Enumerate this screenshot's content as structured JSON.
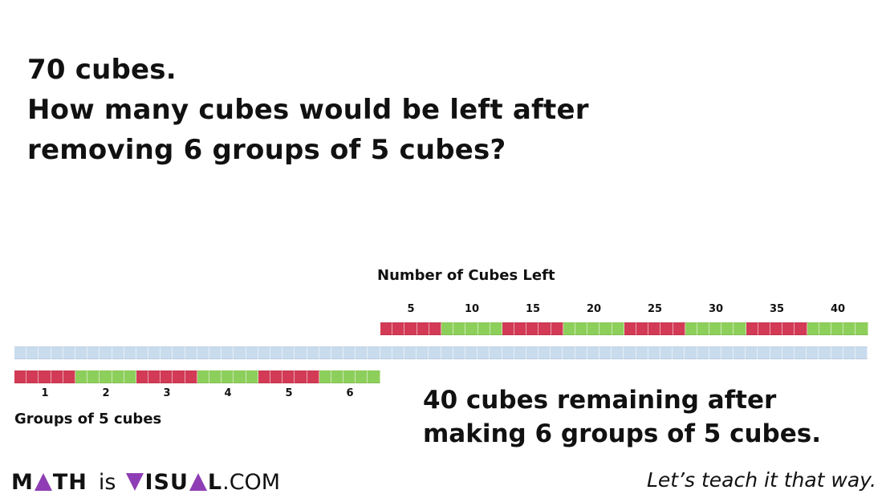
{
  "question": {
    "line1": "70 cubes.",
    "line2": "How many cubes would be left after",
    "line3": "removing 6 groups of 5 cubes?"
  },
  "cubes_left_title": "Number of Cubes Left",
  "cubes_left_ticks": [
    "5",
    "10",
    "15",
    "20",
    "25",
    "30",
    "35",
    "40"
  ],
  "groups_title": "Groups of 5 cubes",
  "group_ticks": [
    "1",
    "2",
    "3",
    "4",
    "5",
    "6"
  ],
  "answer": {
    "line1": "40 cubes remaining after",
    "line2": "making 6 groups of 5 cubes."
  },
  "total_cubes": 70,
  "group_size": 5,
  "groups_removed": 6,
  "cubes_remaining": 40,
  "colors": {
    "red": "#d23a55",
    "green": "#8dcf5b",
    "blue": "#c9dcee",
    "logo_accent": "#8e3db4"
  },
  "footer": {
    "logo_math_m": "M",
    "logo_math_th": "TH",
    "logo_is": "is",
    "logo_visual_v": "",
    "logo_visual_isu": "ISU",
    "logo_visual_l": "L",
    "logo_com": ".COM",
    "tagline": "Let’s teach it that way."
  }
}
